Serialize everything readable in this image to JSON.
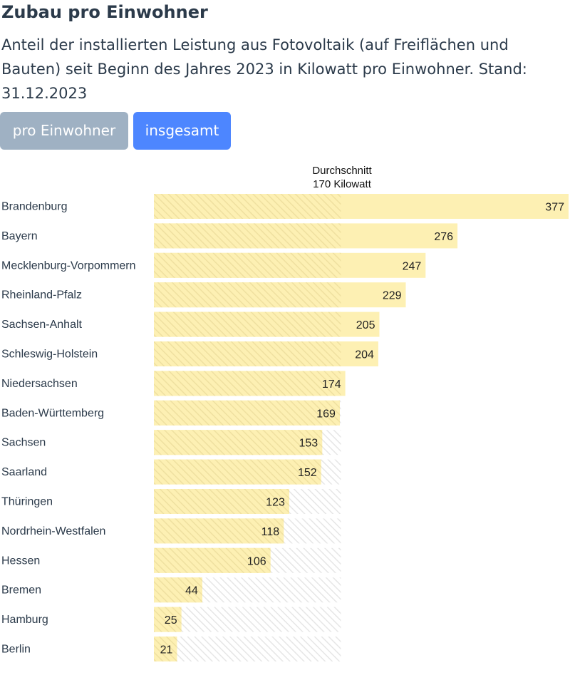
{
  "header": {
    "title": "Zubau pro Einwohner",
    "subtitle": "Anteil der installierten Leistung aus Fotovoltaik (auf Freiflächen und Bauten) seit Beginn des Jahres 2023 in Kilowatt pro Einwohner. Stand: 31.12.2023"
  },
  "tabs": [
    {
      "label": "pro Einwohner",
      "active": true
    },
    {
      "label": "insgesamt",
      "active": false
    }
  ],
  "colors": {
    "bar": "#fdf0b3",
    "hatch_bar": "#efe0a0",
    "hatch_bg_stroke": "#e6e6e6",
    "tab_active": "#9fb1c3",
    "tab_inactive": "#4d86ff"
  },
  "chart_data": {
    "type": "bar",
    "orientation": "horizontal",
    "categories": [
      "Brandenburg",
      "Bayern",
      "Mecklenburg-Vorpommern",
      "Rheinland-Pfalz",
      "Sachsen-Anhalt",
      "Schleswig-Holstein",
      "Niedersachsen",
      "Baden-Württemberg",
      "Sachsen",
      "Saarland",
      "Thüringen",
      "Nordrhein-Westfalen",
      "Hessen",
      "Bremen",
      "Hamburg",
      "Berlin"
    ],
    "values": [
      377,
      276,
      247,
      229,
      205,
      204,
      174,
      169,
      153,
      152,
      123,
      118,
      106,
      44,
      25,
      21
    ],
    "average": {
      "value": 170,
      "label_line1": "Durchschnitt",
      "label_line2": "170 Kilowatt"
    },
    "xlim": [
      0,
      377
    ]
  }
}
